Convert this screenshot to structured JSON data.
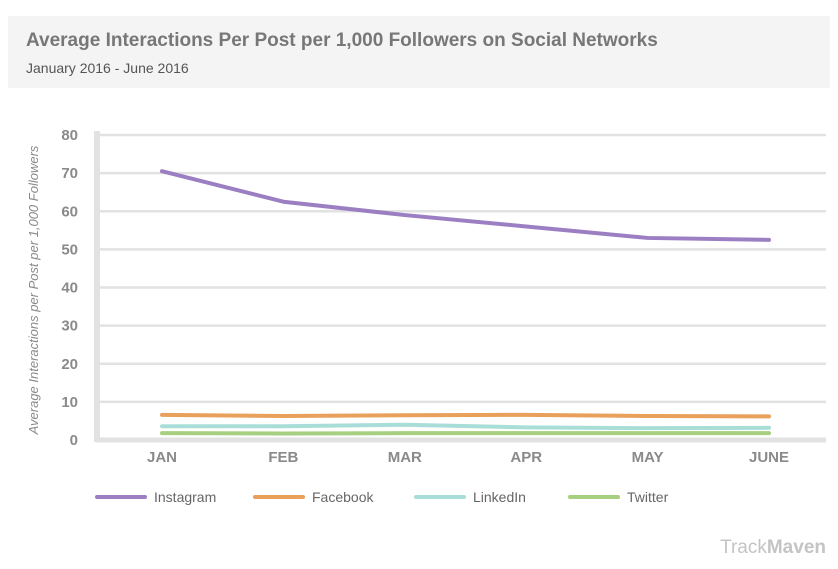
{
  "header": {
    "title": "Average Interactions Per Post per 1,000 Followers on Social Networks",
    "subtitle": "January 2016 - June 2016"
  },
  "brand": {
    "part1": "Track",
    "part2": "Maven"
  },
  "chart_data": {
    "type": "line",
    "title": "Average Interactions Per Post per 1,000 Followers on Social Networks",
    "subtitle": "January 2016 - June 2016",
    "ylabel": "Average Interactions per Post per 1,000 Followers",
    "xlabel": "",
    "categories": [
      "JAN",
      "FEB",
      "MAR",
      "APR",
      "MAY",
      "JUNE"
    ],
    "ylim": [
      0,
      80
    ],
    "yticks": [
      0,
      10,
      20,
      30,
      40,
      50,
      60,
      70,
      80
    ],
    "grid": true,
    "legend_position": "bottom",
    "series": [
      {
        "name": "Instagram",
        "color": "#9b7fc2",
        "values": [
          70.5,
          62.5,
          59,
          56,
          53,
          52.5
        ]
      },
      {
        "name": "Facebook",
        "color": "#e8a05a",
        "values": [
          6.6,
          6.3,
          6.5,
          6.6,
          6.3,
          6.2
        ]
      },
      {
        "name": "LinkedIn",
        "color": "#a9ddd8",
        "values": [
          3.6,
          3.6,
          4.0,
          3.3,
          3.1,
          3.2
        ]
      },
      {
        "name": "Twitter",
        "color": "#a6cf7f",
        "values": [
          1.8,
          1.7,
          1.8,
          1.8,
          1.8,
          1.8
        ]
      }
    ]
  }
}
